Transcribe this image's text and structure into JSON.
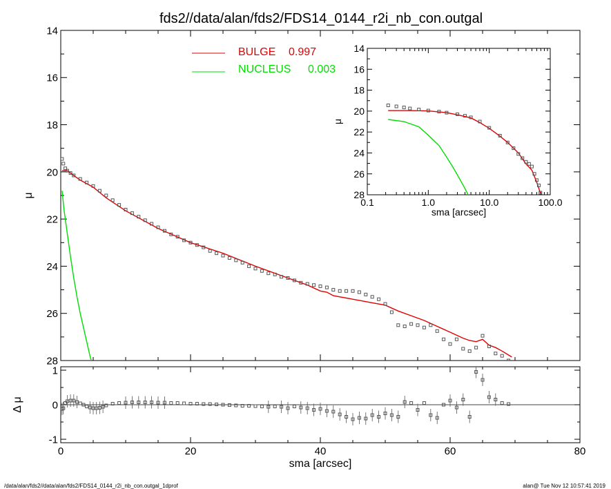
{
  "title": "fds2//data/alan/fds2/FDS14_0144_r2i_nb_con.outgal",
  "footer": {
    "left": "/data/alan/fds2//data/alan/fds2/FDS14_0144_r2i_nb_con.outgal_1dprof",
    "right": "alan@  Tue Nov 12 10:57:41 2019"
  },
  "legend": [
    {
      "label": "BULGE",
      "value": "0.997",
      "color": "#e00000"
    },
    {
      "label": "NUCLEUS",
      "value": "0.003",
      "color": "#00dd00"
    }
  ],
  "colors": {
    "data": "#555555",
    "bulge": "#e00000",
    "nucleus": "#00dd00",
    "axes": "#000000"
  },
  "chart_data": [
    {
      "type": "scatter",
      "name": "main",
      "xlabel": "sma [arcsec]",
      "ylabel": "μ",
      "xlim": [
        0,
        80
      ],
      "ylim": [
        28,
        14
      ],
      "y_inverted": true,
      "xticks": [
        "0",
        "20",
        "40",
        "60",
        "80"
      ],
      "yticks": [
        "14",
        "16",
        "18",
        "20",
        "22",
        "24",
        "26",
        "28"
      ],
      "data_points": {
        "x": [
          0.2,
          0.4,
          0.7,
          1.0,
          1.5,
          2,
          3,
          4,
          5,
          6,
          7,
          8,
          9,
          10,
          11,
          12,
          13,
          14,
          15,
          16,
          17,
          18,
          19,
          20,
          21,
          22,
          23,
          24,
          25,
          26,
          27,
          28,
          29,
          30,
          31,
          32,
          33,
          34,
          35,
          36,
          37,
          38,
          39,
          40,
          41,
          42,
          43,
          44,
          45,
          46,
          47,
          48,
          49,
          50,
          51,
          52,
          53,
          54,
          55,
          56,
          57,
          58,
          59,
          60,
          61,
          62,
          63,
          64,
          65,
          66,
          67,
          68,
          69
        ],
        "y": [
          19.45,
          19.65,
          19.85,
          19.95,
          20.05,
          20.15,
          20.3,
          20.45,
          20.6,
          20.8,
          21.0,
          21.2,
          21.4,
          21.6,
          21.75,
          21.9,
          22.05,
          22.2,
          22.35,
          22.5,
          22.65,
          22.75,
          22.9,
          23.0,
          23.1,
          23.2,
          23.35,
          23.45,
          23.55,
          23.65,
          23.75,
          23.85,
          24.0,
          24.1,
          24.2,
          24.3,
          24.35,
          24.45,
          24.5,
          24.6,
          24.7,
          24.75,
          24.8,
          24.85,
          24.9,
          25.0,
          25.05,
          25.05,
          25.05,
          25.1,
          25.2,
          25.3,
          25.4,
          25.6,
          25.95,
          26.5,
          26.55,
          26.45,
          26.5,
          26.6,
          26.5,
          26.75,
          27.1,
          27.3,
          27.1,
          27.5,
          27.6,
          27.45,
          26.95,
          27.4,
          27.7,
          27.8,
          28.0
        ]
      },
      "series": [
        {
          "name": "BULGE",
          "color": "#e00000",
          "x": [
            0.2,
            1,
            2,
            3,
            4,
            5,
            7,
            10,
            15,
            20,
            25,
            30,
            35,
            38,
            40,
            41,
            42,
            43,
            44,
            46,
            48,
            50,
            52,
            54,
            56,
            58,
            60,
            62,
            63,
            64,
            65,
            66,
            67,
            68,
            69.5
          ],
          "y": [
            19.95,
            19.95,
            20.15,
            20.35,
            20.5,
            20.65,
            21.1,
            21.65,
            22.4,
            23.0,
            23.45,
            24.0,
            24.5,
            24.8,
            25.05,
            25.1,
            25.25,
            25.3,
            25.35,
            25.45,
            25.55,
            25.65,
            25.9,
            26.1,
            26.3,
            26.55,
            26.8,
            27.05,
            27.15,
            27.2,
            27.1,
            27.35,
            27.45,
            27.6,
            27.85
          ]
        },
        {
          "name": "NUCLEUS",
          "color": "#00dd00",
          "x": [
            0.2,
            0.5,
            1,
            1.5,
            2,
            2.5,
            3,
            3.5,
            4,
            4.5,
            4.7
          ],
          "y": [
            20.8,
            21.6,
            22.6,
            23.6,
            24.5,
            25.3,
            26.0,
            26.6,
            27.2,
            27.8,
            28.0
          ]
        }
      ]
    },
    {
      "type": "scatter",
      "name": "residual",
      "xlabel": "sma [arcsec]",
      "ylabel": "Δ μ",
      "xlim": [
        0,
        80
      ],
      "ylim": [
        -1.1,
        1.1
      ],
      "xticks": [
        "0",
        "20",
        "40",
        "60",
        "80"
      ],
      "yticks": [
        "-1",
        "0",
        "1"
      ],
      "data_points": {
        "x": [
          0.2,
          0.4,
          0.7,
          1.0,
          1.5,
          2,
          2.5,
          3,
          3.5,
          4,
          4.5,
          5,
          5.5,
          6,
          6.5,
          7,
          8,
          9,
          10,
          11,
          12,
          13,
          14,
          15,
          16,
          17,
          18,
          19,
          20,
          21,
          22,
          23,
          24,
          25,
          26,
          27,
          28,
          29,
          30,
          31,
          32,
          33,
          34,
          35,
          36,
          37,
          38,
          39,
          40,
          41,
          42,
          43,
          44,
          45,
          46,
          47,
          48,
          49,
          50,
          51,
          52,
          53,
          54,
          55,
          56,
          57,
          58,
          59,
          60,
          61,
          62,
          63,
          64,
          65,
          66,
          67,
          68,
          69
        ],
        "y": [
          -0.12,
          -0.1,
          0.05,
          0.1,
          0.12,
          0.12,
          0.08,
          0.04,
          0.0,
          -0.05,
          -0.08,
          -0.1,
          -0.1,
          -0.09,
          -0.06,
          -0.02,
          0.03,
          0.05,
          0.06,
          0.07,
          0.07,
          0.07,
          0.07,
          0.06,
          0.06,
          0.05,
          0.05,
          0.04,
          0.03,
          0.03,
          0.02,
          0.02,
          0.01,
          0.0,
          -0.01,
          -0.02,
          -0.03,
          -0.03,
          -0.04,
          -0.05,
          -0.06,
          -0.05,
          -0.06,
          -0.1,
          -0.05,
          -0.08,
          -0.1,
          -0.15,
          -0.12,
          -0.18,
          -0.2,
          -0.28,
          -0.35,
          -0.42,
          -0.38,
          -0.4,
          -0.3,
          -0.35,
          -0.25,
          -0.3,
          -0.35,
          0.08,
          0.05,
          -0.15,
          0.05,
          -0.3,
          -0.38,
          0.0,
          0.12,
          -0.08,
          0.15,
          -0.35,
          0.95,
          0.72,
          0.22,
          0.15,
          0.05,
          0.02
        ]
      }
    },
    {
      "type": "scatter",
      "name": "inset",
      "xlabel": "sma [arcsec]",
      "ylabel": "μ",
      "xscale": "log",
      "xlim": [
        0.1,
        100
      ],
      "ylim": [
        28,
        14
      ],
      "y_inverted": true,
      "xticks": [
        "0.1",
        "1.0",
        "10.0",
        "100.0"
      ],
      "yticks": [
        "14",
        "16",
        "18",
        "20",
        "22",
        "24",
        "26",
        "28"
      ],
      "data_points": {
        "x": [
          0.22,
          0.3,
          0.4,
          0.5,
          0.7,
          1.0,
          1.5,
          2,
          3,
          4,
          5,
          7,
          10,
          15,
          20,
          25,
          30,
          35,
          40,
          45,
          50,
          55,
          60,
          65,
          69
        ],
        "y": [
          19.45,
          19.55,
          19.65,
          19.75,
          19.85,
          19.95,
          20.05,
          20.15,
          20.3,
          20.45,
          20.6,
          21.0,
          21.6,
          22.35,
          23.0,
          23.55,
          24.1,
          24.5,
          24.85,
          25.05,
          25.3,
          26.0,
          26.6,
          27.1,
          27.8
        ]
      },
      "series": [
        {
          "name": "BULGE",
          "color": "#e00000",
          "x": [
            0.22,
            0.5,
            1,
            2,
            3,
            5,
            7,
            10,
            15,
            20,
            30,
            40,
            50,
            60,
            69
          ],
          "y": [
            19.95,
            19.95,
            19.98,
            20.15,
            20.35,
            20.65,
            21.1,
            21.65,
            22.4,
            23.0,
            24.0,
            25.05,
            25.65,
            26.8,
            27.85
          ]
        },
        {
          "name": "NUCLEUS",
          "color": "#00dd00",
          "x": [
            0.22,
            0.4,
            0.7,
            1.0,
            1.5,
            2,
            2.5,
            3,
            3.5,
            4,
            4.5
          ],
          "y": [
            20.8,
            21.0,
            21.5,
            22.3,
            23.3,
            24.4,
            25.3,
            26.1,
            26.8,
            27.4,
            28.0
          ]
        }
      ]
    }
  ]
}
